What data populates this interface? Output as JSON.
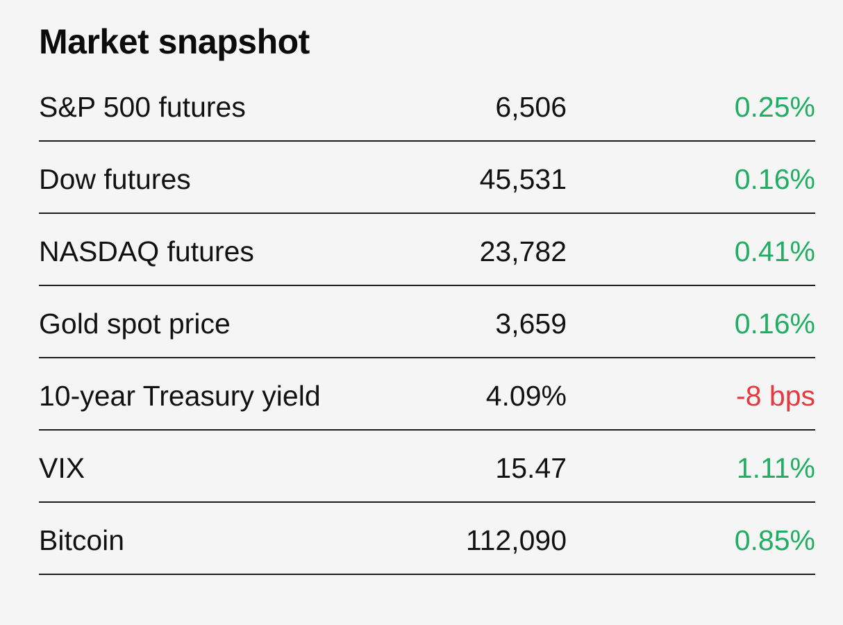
{
  "title": "Market snapshot",
  "colors": {
    "positive": "#1fae62",
    "negative": "#e8383d",
    "text": "#111111",
    "background": "#f5f5f5",
    "divider": "#1a1a1a"
  },
  "rows": [
    {
      "name": "S&P 500 futures",
      "value": "6,506",
      "change": "0.25%",
      "direction": "positive"
    },
    {
      "name": "Dow futures",
      "value": "45,531",
      "change": "0.16%",
      "direction": "positive"
    },
    {
      "name": "NASDAQ futures",
      "value": "23,782",
      "change": "0.41%",
      "direction": "positive"
    },
    {
      "name": "Gold spot price",
      "value": "3,659",
      "change": "0.16%",
      "direction": "positive"
    },
    {
      "name": "10-year Treasury yield",
      "value": "4.09%",
      "change": "-8 bps",
      "direction": "negative"
    },
    {
      "name": "VIX",
      "value": "15.47",
      "change": "1.11%",
      "direction": "positive"
    },
    {
      "name": "Bitcoin",
      "value": "112,090",
      "change": "0.85%",
      "direction": "positive"
    }
  ]
}
